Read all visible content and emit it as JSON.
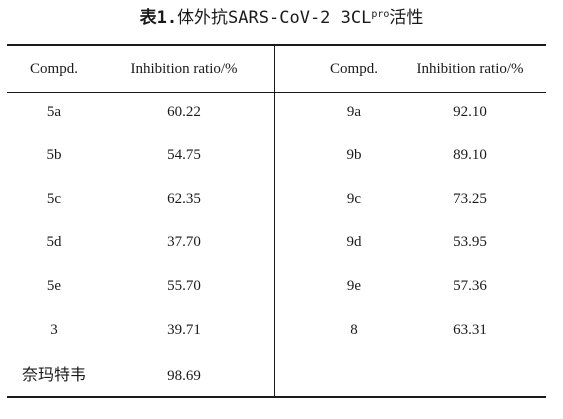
{
  "caption": {
    "label": "表1.",
    "text_before_sup": "体外抗SARS-CoV-2 3CL",
    "sup": "pro",
    "text_after_sup": "活性"
  },
  "headers": {
    "left_compd": "Compd.",
    "left_ratio": "Inhibition ratio/%",
    "right_compd": "Compd.",
    "right_ratio": "Inhibition ratio/%"
  },
  "left": [
    {
      "compd": "5a",
      "ratio": "60.22"
    },
    {
      "compd": "5b",
      "ratio": "54.75"
    },
    {
      "compd": "5c",
      "ratio": "62.35"
    },
    {
      "compd": "5d",
      "ratio": "37.70"
    },
    {
      "compd": "5e",
      "ratio": "55.70"
    },
    {
      "compd": "3",
      "ratio": "39.71"
    },
    {
      "compd": "奈玛特韦",
      "ratio": "98.69"
    }
  ],
  "right": [
    {
      "compd": "9a",
      "ratio": "92.10"
    },
    {
      "compd": "9b",
      "ratio": "89.10"
    },
    {
      "compd": "9c",
      "ratio": "73.25"
    },
    {
      "compd": "9d",
      "ratio": "53.95"
    },
    {
      "compd": "9e",
      "ratio": "57.36"
    },
    {
      "compd": "8",
      "ratio": "63.31"
    }
  ]
}
